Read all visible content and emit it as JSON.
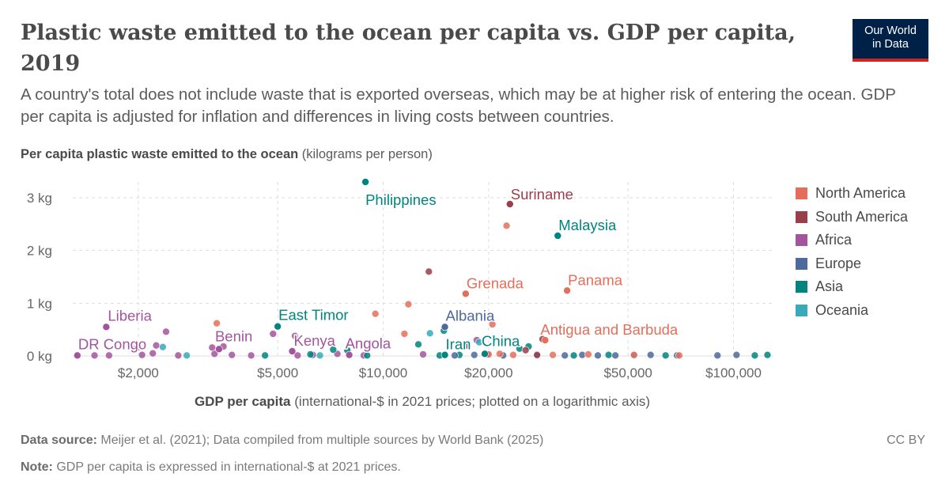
{
  "header": {
    "title": "Plastic waste emitted to the ocean per capita vs. GDP per capita, 2019",
    "subtitle": "A country's total does not include waste that is exported overseas, which may be at higher risk of entering the ocean. GDP per capita is adjusted for inflation and differences in living costs between countries.",
    "logo_line1": "Our World",
    "logo_line2": "in Data"
  },
  "axes": {
    "y_title_bold": "Per capita plastic waste emitted to the ocean",
    "y_title_unit": "(kilograms per person)",
    "x_title_bold": "GDP per capita",
    "x_title_unit": "(international-$ in 2021 prices; plotted on a logarithmic axis)"
  },
  "footer": {
    "source_label": "Data source:",
    "source_text": "Meijer et al. (2021); Data compiled from multiple sources by World Bank (2025)",
    "note_label": "Note:",
    "note_text": "GDP per capita is expressed in international-$ at 2021 prices.",
    "license": "CC BY"
  },
  "legend": [
    {
      "name": "North America",
      "color": "#e56e5a"
    },
    {
      "name": "South America",
      "color": "#9a3e4a"
    },
    {
      "name": "Africa",
      "color": "#a2559c"
    },
    {
      "name": "Europe",
      "color": "#4c6a9c"
    },
    {
      "name": "Asia",
      "color": "#00847e"
    },
    {
      "name": "Oceania",
      "color": "#38aaba"
    }
  ],
  "chart_data": {
    "type": "scatter",
    "title": "Plastic waste emitted to the ocean per capita vs. GDP per capita, 2019",
    "xlabel": "GDP per capita",
    "ylabel": "Per capita plastic waste emitted to the ocean",
    "x_scale": "log",
    "xlim": [
      1300,
      130000
    ],
    "ylim": [
      0,
      3.3
    ],
    "x_ticks": [
      {
        "value": 2000,
        "label": "$2,000"
      },
      {
        "value": 5000,
        "label": "$5,000"
      },
      {
        "value": 10000,
        "label": "$10,000"
      },
      {
        "value": 20000,
        "label": "$20,000"
      },
      {
        "value": 50000,
        "label": "$50,000"
      },
      {
        "value": 100000,
        "label": "$100,000"
      }
    ],
    "y_ticks": [
      {
        "value": 0,
        "label": "0 kg"
      },
      {
        "value": 1,
        "label": "1 kg"
      },
      {
        "value": 2,
        "label": "2 kg"
      },
      {
        "value": 3,
        "label": "3 kg"
      }
    ],
    "grid": true,
    "legend_position": "right",
    "labeled_points": [
      {
        "label": "Philippines",
        "region": "Asia",
        "x": 8900,
        "y": 3.3
      },
      {
        "label": "Suriname",
        "region": "South America",
        "x": 23000,
        "y": 2.88
      },
      {
        "label": "Malaysia",
        "region": "Asia",
        "x": 31500,
        "y": 2.28
      },
      {
        "label": "Grenada",
        "region": "North America",
        "x": 17200,
        "y": 1.18
      },
      {
        "label": "Panama",
        "region": "North America",
        "x": 33500,
        "y": 1.24
      },
      {
        "label": "Liberia",
        "region": "Africa",
        "x": 1620,
        "y": 0.55
      },
      {
        "label": "East Timor",
        "region": "Asia",
        "x": 5000,
        "y": 0.56
      },
      {
        "label": "Albania",
        "region": "Europe",
        "x": 15000,
        "y": 0.55
      },
      {
        "label": "Benin",
        "region": "Africa",
        "x": 3400,
        "y": 0.13
      },
      {
        "label": "DR Congo",
        "region": "Africa",
        "x": 1340,
        "y": 0.01
      },
      {
        "label": "Kenya",
        "region": "Africa",
        "x": 5500,
        "y": 0.09
      },
      {
        "label": "Angola",
        "region": "Africa",
        "x": 8000,
        "y": 0.02
      },
      {
        "label": "Iran",
        "region": "Asia",
        "x": 15000,
        "y": 0.02
      },
      {
        "label": "China",
        "region": "Asia",
        "x": 19500,
        "y": 0.04
      },
      {
        "label": "Antigua and Barbuda",
        "region": "North America",
        "x": 29000,
        "y": 0.3
      }
    ],
    "points": [
      {
        "region": "North America",
        "x": 22500,
        "y": 2.47
      },
      {
        "region": "South America",
        "x": 13500,
        "y": 1.6
      },
      {
        "region": "North America",
        "x": 11800,
        "y": 0.98
      },
      {
        "region": "North America",
        "x": 9500,
        "y": 0.8
      },
      {
        "region": "North America",
        "x": 3350,
        "y": 0.62
      },
      {
        "region": "North America",
        "x": 20500,
        "y": 0.6
      },
      {
        "region": "North America",
        "x": 11500,
        "y": 0.42
      },
      {
        "region": "Africa",
        "x": 2400,
        "y": 0.46
      },
      {
        "region": "Africa",
        "x": 4850,
        "y": 0.42
      },
      {
        "region": "Africa",
        "x": 5600,
        "y": 0.38
      },
      {
        "region": "Oceania",
        "x": 13600,
        "y": 0.43
      },
      {
        "region": "Asia",
        "x": 14900,
        "y": 0.48
      },
      {
        "region": "Africa",
        "x": 1980,
        "y": 0.15
      },
      {
        "region": "Africa",
        "x": 2250,
        "y": 0.2
      },
      {
        "region": "Africa",
        "x": 2200,
        "y": 0.05
      },
      {
        "region": "Africa",
        "x": 2050,
        "y": 0.02
      },
      {
        "region": "Africa",
        "x": 3250,
        "y": 0.16
      },
      {
        "region": "Africa",
        "x": 3500,
        "y": 0.18
      },
      {
        "region": "Africa",
        "x": 3300,
        "y": 0.04
      },
      {
        "region": "Africa",
        "x": 3700,
        "y": 0.02
      },
      {
        "region": "Africa",
        "x": 4200,
        "y": 0.01
      },
      {
        "region": "Africa",
        "x": 1500,
        "y": 0.01
      },
      {
        "region": "Africa",
        "x": 1650,
        "y": 0.01
      },
      {
        "region": "Africa",
        "x": 2600,
        "y": 0.01
      },
      {
        "region": "Africa",
        "x": 5700,
        "y": 0.01
      },
      {
        "region": "Africa",
        "x": 6300,
        "y": 0.02
      },
      {
        "region": "Africa",
        "x": 7400,
        "y": 0.04
      },
      {
        "region": "Africa",
        "x": 8800,
        "y": 0.01
      },
      {
        "region": "Africa",
        "x": 13000,
        "y": 0.03
      },
      {
        "region": "Africa",
        "x": 18500,
        "y": 0.3
      },
      {
        "region": "Oceania",
        "x": 2350,
        "y": 0.17
      },
      {
        "region": "Oceania",
        "x": 2750,
        "y": 0.01
      },
      {
        "region": "Oceania",
        "x": 6600,
        "y": 0.01
      },
      {
        "region": "Oceania",
        "x": 18800,
        "y": 0.26
      },
      {
        "region": "Asia",
        "x": 4600,
        "y": 0.01
      },
      {
        "region": "Asia",
        "x": 6200,
        "y": 0.03
      },
      {
        "region": "Asia",
        "x": 7200,
        "y": 0.12
      },
      {
        "region": "Asia",
        "x": 7900,
        "y": 0.11
      },
      {
        "region": "Asia",
        "x": 9000,
        "y": 0.01
      },
      {
        "region": "Asia",
        "x": 12600,
        "y": 0.22
      },
      {
        "region": "Asia",
        "x": 14500,
        "y": 0.01
      },
      {
        "region": "Asia",
        "x": 16500,
        "y": 0.02
      },
      {
        "region": "Asia",
        "x": 24500,
        "y": 0.14
      },
      {
        "region": "Asia",
        "x": 26000,
        "y": 0.18
      },
      {
        "region": "Asia",
        "x": 35000,
        "y": 0.01
      },
      {
        "region": "Asia",
        "x": 44000,
        "y": 0.02
      },
      {
        "region": "Asia",
        "x": 64000,
        "y": 0.01
      },
      {
        "region": "Asia",
        "x": 115000,
        "y": 0.01
      },
      {
        "region": "Asia",
        "x": 125000,
        "y": 0.02
      },
      {
        "region": "Europe",
        "x": 16000,
        "y": 0.01
      },
      {
        "region": "Europe",
        "x": 18200,
        "y": 0.02
      },
      {
        "region": "Europe",
        "x": 22000,
        "y": 0.01
      },
      {
        "region": "Europe",
        "x": 27500,
        "y": 0.01
      },
      {
        "region": "Europe",
        "x": 33000,
        "y": 0.01
      },
      {
        "region": "Europe",
        "x": 37000,
        "y": 0.02
      },
      {
        "region": "Europe",
        "x": 41000,
        "y": 0.01
      },
      {
        "region": "Europe",
        "x": 46000,
        "y": 0.01
      },
      {
        "region": "Europe",
        "x": 52000,
        "y": 0.01
      },
      {
        "region": "Europe",
        "x": 58000,
        "y": 0.02
      },
      {
        "region": "Europe",
        "x": 69000,
        "y": 0.01
      },
      {
        "region": "Europe",
        "x": 90000,
        "y": 0.01
      },
      {
        "region": "Europe",
        "x": 102000,
        "y": 0.02
      },
      {
        "region": "South America",
        "x": 17300,
        "y": 0.2
      },
      {
        "region": "South America",
        "x": 25500,
        "y": 0.11
      },
      {
        "region": "South America",
        "x": 28500,
        "y": 0.32
      },
      {
        "region": "South America",
        "x": 19800,
        "y": 0.03
      },
      {
        "region": "South America",
        "x": 27500,
        "y": 0.02
      },
      {
        "region": "North America",
        "x": 20000,
        "y": 0.03
      },
      {
        "region": "North America",
        "x": 21500,
        "y": 0.04
      },
      {
        "region": "North America",
        "x": 23500,
        "y": 0.02
      },
      {
        "region": "North America",
        "x": 30500,
        "y": 0.02
      },
      {
        "region": "North America",
        "x": 38500,
        "y": 0.03
      },
      {
        "region": "North America",
        "x": 52000,
        "y": 0.02
      },
      {
        "region": "North America",
        "x": 70000,
        "y": 0.01
      }
    ]
  }
}
